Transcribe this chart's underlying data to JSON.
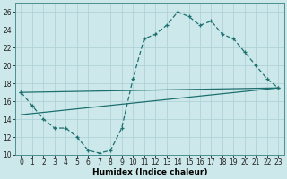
{
  "xlabel": "Humidex (Indice chaleur)",
  "background_color": "#cce8ea",
  "grid_color": "#aacfd4",
  "line_color": "#1e7070",
  "xlim": [
    -0.5,
    23.5
  ],
  "ylim": [
    10,
    27
  ],
  "xticks": [
    0,
    1,
    2,
    3,
    4,
    5,
    6,
    7,
    8,
    9,
    10,
    11,
    12,
    13,
    14,
    15,
    16,
    17,
    18,
    19,
    20,
    21,
    22,
    23
  ],
  "yticks": [
    10,
    12,
    14,
    16,
    18,
    20,
    22,
    24,
    26
  ],
  "jagged_x": [
    0,
    1,
    2,
    3,
    4,
    5,
    6,
    7,
    8,
    9,
    10,
    11,
    12,
    13,
    14,
    15,
    16,
    17,
    18,
    19,
    20,
    21,
    22,
    23
  ],
  "jagged_y": [
    17.0,
    15.5,
    14.0,
    13.0,
    13.0,
    12.0,
    10.5,
    10.2,
    10.5,
    13.0,
    18.5,
    23.0,
    23.5,
    24.5,
    26.0,
    25.5,
    24.5,
    25.0,
    23.5,
    23.0,
    21.5,
    20.0,
    18.5,
    17.5
  ],
  "upper_line_x": [
    0,
    23
  ],
  "upper_line_y": [
    17.0,
    17.5
  ],
  "lower_line_x": [
    0,
    23
  ],
  "lower_line_y": [
    14.5,
    17.5
  ],
  "xlabel_fontsize": 6.5,
  "tick_fontsize": 5.5
}
